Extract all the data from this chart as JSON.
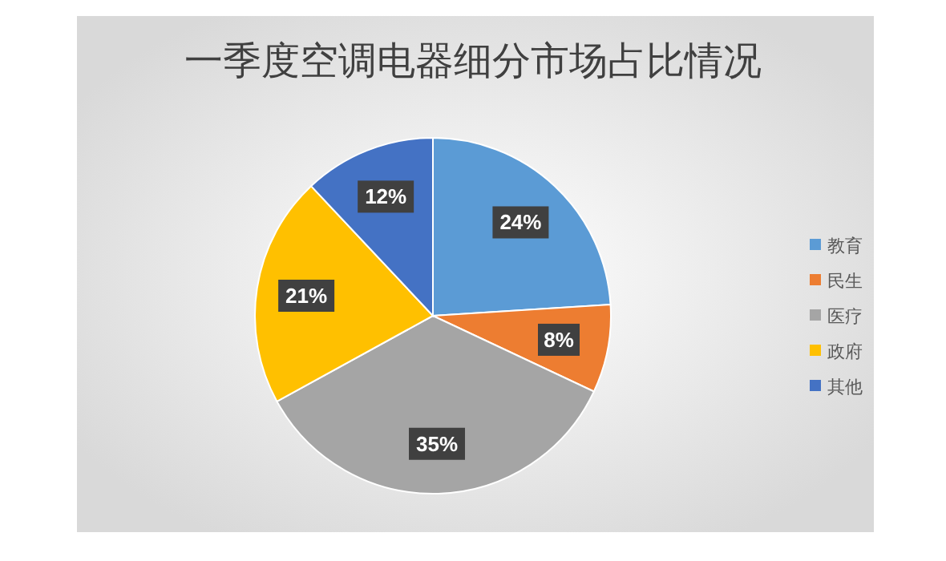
{
  "chart_data": {
    "type": "pie",
    "title": "一季度空调电器细分市场占比情况",
    "categories": [
      "教育",
      "民生",
      "医疗",
      "政府",
      "其他"
    ],
    "values": [
      24,
      8,
      35,
      21,
      12
    ],
    "colors": [
      "#5b9bd5",
      "#ed7d31",
      "#a5a5a5",
      "#ffc000",
      "#4472c4"
    ],
    "value_labels": [
      "24%",
      "8%",
      "35%",
      "21%",
      "12%"
    ],
    "legend": "right"
  }
}
